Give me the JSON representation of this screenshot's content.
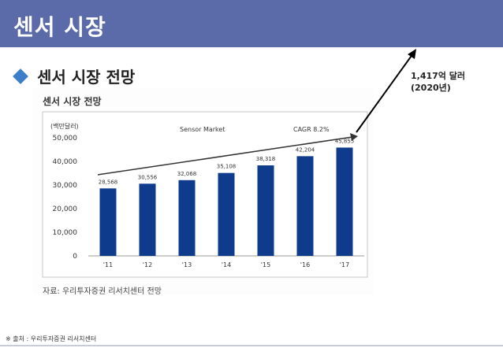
{
  "header": {
    "title": "센서 시장"
  },
  "section": {
    "heading": "센서 시장 전망"
  },
  "annotation": {
    "line1": "1,417억 달러",
    "line2": "(2020년)"
  },
  "figure": {
    "title": "센서 시장 전망",
    "source": "자료: 우리투자증권 리서치센터 전망"
  },
  "footnote": "※ 출처 : 우리투자증권 리서치센터",
  "colors": {
    "bar": "#0e3b8c",
    "header": "#5b6aa8",
    "accent": "#3c7ec8"
  },
  "chart_data": {
    "type": "bar",
    "ylabel": "(백만달러)",
    "series_label": "Sensor Market",
    "cagr_label": "CAGR 8.2%",
    "categories": [
      "'11",
      "'12",
      "'13",
      "'14",
      "'15",
      "'16",
      "'17"
    ],
    "values": [
      28568,
      30556,
      32068,
      35108,
      38318,
      42204,
      45855
    ],
    "value_labels": [
      "28,568",
      "30,556",
      "32,068",
      "35,108",
      "38,318",
      "42,204",
      "45,855"
    ],
    "yticks": [
      0,
      10000,
      20000,
      30000,
      40000,
      50000
    ],
    "ytick_labels": [
      "0",
      "10,000",
      "20,000",
      "30,000",
      "40,000",
      "50,000"
    ],
    "ylim": [
      0,
      52000
    ],
    "grid": false
  }
}
